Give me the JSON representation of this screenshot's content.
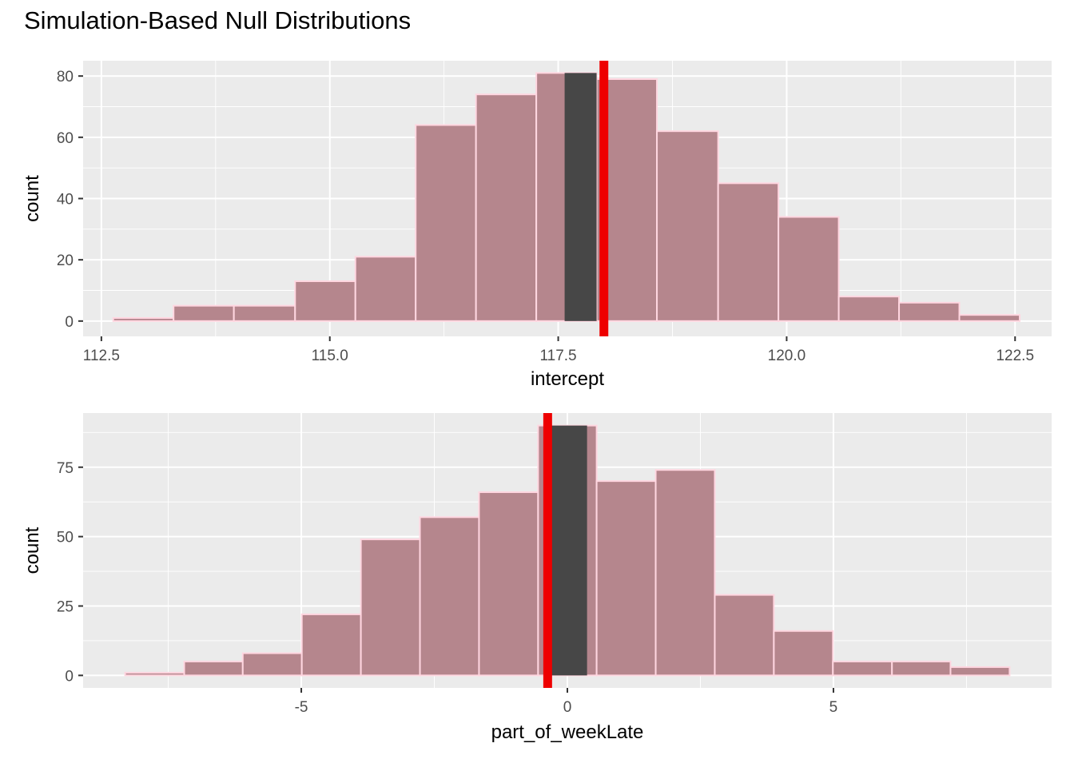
{
  "title": "Simulation-Based Null Distributions",
  "colors": {
    "panel_bg": "#ebebeb",
    "grid": "#ffffff",
    "bar_fill": "#b5868d",
    "bar_stroke": "#ffd6e0",
    "shade_fill": "#474747",
    "obs_line": "#ee0000"
  },
  "chart_data": [
    {
      "type": "bar",
      "subtype": "histogram",
      "xlabel": "intercept",
      "ylabel": "count",
      "xlim": [
        112.3,
        122.9
      ],
      "ylim": [
        -5,
        85
      ],
      "x_ticks": [
        112.5,
        115.0,
        117.5,
        120.0,
        122.5
      ],
      "x_tick_labels": [
        "112.5",
        "115.0",
        "117.5",
        "120.0",
        "122.5"
      ],
      "y_ticks": [
        0,
        20,
        40,
        60,
        80
      ],
      "y_tick_labels": [
        "0",
        "20",
        "40",
        "60",
        "80"
      ],
      "bins": [
        {
          "x0": 112.63,
          "x1": 113.29,
          "count": 1
        },
        {
          "x0": 113.29,
          "x1": 113.95,
          "count": 5
        },
        {
          "x0": 113.95,
          "x1": 114.62,
          "count": 5
        },
        {
          "x0": 114.62,
          "x1": 115.28,
          "count": 13
        },
        {
          "x0": 115.28,
          "x1": 115.94,
          "count": 21
        },
        {
          "x0": 115.94,
          "x1": 116.6,
          "count": 64
        },
        {
          "x0": 116.6,
          "x1": 117.26,
          "count": 74
        },
        {
          "x0": 117.26,
          "x1": 117.92,
          "count": 81
        },
        {
          "x0": 117.92,
          "x1": 118.58,
          "count": 79
        },
        {
          "x0": 118.58,
          "x1": 119.25,
          "count": 62
        },
        {
          "x0": 119.25,
          "x1": 119.91,
          "count": 45
        },
        {
          "x0": 119.91,
          "x1": 120.57,
          "count": 34
        },
        {
          "x0": 120.57,
          "x1": 121.23,
          "count": 8
        },
        {
          "x0": 121.23,
          "x1": 121.89,
          "count": 6
        },
        {
          "x0": 121.89,
          "x1": 122.55,
          "count": 2
        }
      ],
      "shade": {
        "x0": 117.57,
        "x1": 117.92,
        "count": 81
      },
      "observed": 118.0
    },
    {
      "type": "bar",
      "subtype": "histogram",
      "xlabel": "part_of_weekLate",
      "ylabel": "count",
      "xlim": [
        -9.1,
        9.1
      ],
      "ylim": [
        -4.5,
        94.5
      ],
      "x_ticks": [
        -5,
        0,
        5
      ],
      "x_tick_labels": [
        "-5",
        "0",
        "5"
      ],
      "y_ticks": [
        0,
        25,
        50,
        75
      ],
      "y_tick_labels": [
        "0",
        "25",
        "50",
        "75"
      ],
      "bins": [
        {
          "x0": -8.31,
          "x1": -7.2,
          "count": 1
        },
        {
          "x0": -7.2,
          "x1": -6.1,
          "count": 5
        },
        {
          "x0": -6.1,
          "x1": -4.99,
          "count": 8
        },
        {
          "x0": -4.99,
          "x1": -3.88,
          "count": 22
        },
        {
          "x0": -3.88,
          "x1": -2.77,
          "count": 49
        },
        {
          "x0": -2.77,
          "x1": -1.66,
          "count": 57
        },
        {
          "x0": -1.66,
          "x1": -0.55,
          "count": 66
        },
        {
          "x0": -0.55,
          "x1": 0.55,
          "count": 90
        },
        {
          "x0": 0.55,
          "x1": 1.66,
          "count": 70
        },
        {
          "x0": 1.66,
          "x1": 2.77,
          "count": 74
        },
        {
          "x0": 2.77,
          "x1": 3.88,
          "count": 29
        },
        {
          "x0": 3.88,
          "x1": 4.99,
          "count": 16
        },
        {
          "x0": 4.99,
          "x1": 6.1,
          "count": 5
        },
        {
          "x0": 6.1,
          "x1": 7.2,
          "count": 5
        },
        {
          "x0": 7.2,
          "x1": 8.31,
          "count": 3
        }
      ],
      "shade": {
        "x0": -0.37,
        "x1": 0.37,
        "count": 90
      },
      "observed": -0.37
    }
  ]
}
